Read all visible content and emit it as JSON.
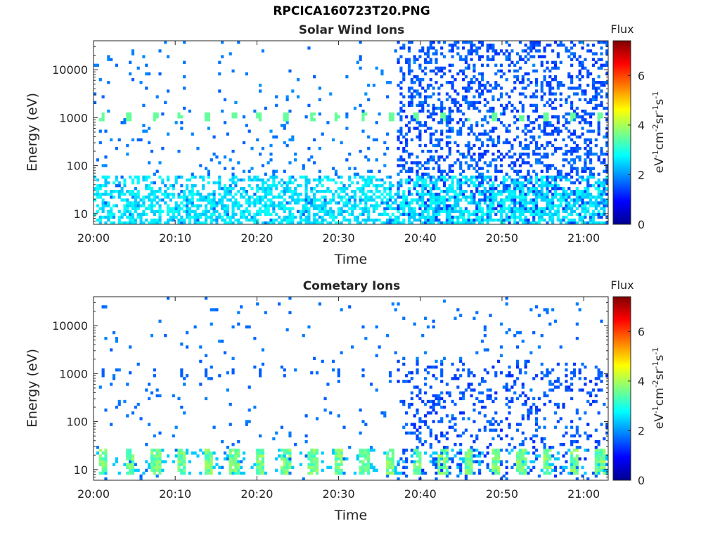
{
  "figure_title": "RPCICA160723T20.PNG",
  "colors": {
    "colormap": [
      "#00008f",
      "#0000ff",
      "#00ffff",
      "#ffff00",
      "#ff0000",
      "#800000"
    ],
    "background": "#ffffff",
    "axis": "#262626"
  },
  "chart_data": [
    {
      "type": "heatmap",
      "title": "Solar Wind Ions",
      "xlabel": "Time",
      "ylabel": "Energy (eV)",
      "x_ticks": [
        "20:00",
        "20:10",
        "20:20",
        "20:30",
        "20:40",
        "20:50",
        "21:00"
      ],
      "x_range_minutes": [
        0,
        63
      ],
      "y_scale": "log",
      "y_ticks": [
        10,
        100,
        1000,
        10000
      ],
      "y_tick_labels": [
        "10",
        "100",
        "1000",
        "10000"
      ],
      "y_range": [
        6,
        40000
      ],
      "colorbar": {
        "title": "Flux",
        "label": "eV-1cm-2sr-1s-1",
        "ticks": [
          0,
          2,
          4,
          6
        ],
        "range": [
          0,
          7.4
        ]
      },
      "features": {
        "background_flux": 1.6,
        "low_energy_band": {
          "energy_range": [
            6,
            60
          ],
          "flux": 2.6
        },
        "periodic_peaks": {
          "energy": 1000,
          "flux": 3.5,
          "period_minutes": 3.2
        },
        "enhanced_interval": {
          "start_minute": 37,
          "end_minute": 63,
          "flux": 1.2
        }
      }
    },
    {
      "type": "heatmap",
      "title": "Cometary Ions",
      "xlabel": "Time",
      "ylabel": "Energy (eV)",
      "x_ticks": [
        "20:00",
        "20:10",
        "20:20",
        "20:30",
        "20:40",
        "20:50",
        "21:00"
      ],
      "x_range_minutes": [
        0,
        63
      ],
      "y_scale": "log",
      "y_ticks": [
        10,
        100,
        1000,
        10000
      ],
      "y_tick_labels": [
        "10",
        "100",
        "1000",
        "10000"
      ],
      "y_range": [
        6,
        40000
      ],
      "colorbar": {
        "title": "Flux",
        "label": "eV-1cm-2sr-1s-1",
        "ticks": [
          0,
          2,
          4,
          6
        ],
        "range": [
          0,
          7.4
        ]
      },
      "features": {
        "background_flux": 1.6,
        "low_energy_band": {
          "energy_range": [
            8,
            28
          ],
          "flux": 3.4,
          "period_minutes": 3.2
        },
        "periodic_peaks": {
          "energy": 1000,
          "flux": 1.6,
          "period_minutes": 3.2
        },
        "enhanced_interval": {
          "start_minute": 37,
          "end_minute": 63,
          "flux": 1.2
        }
      }
    }
  ]
}
